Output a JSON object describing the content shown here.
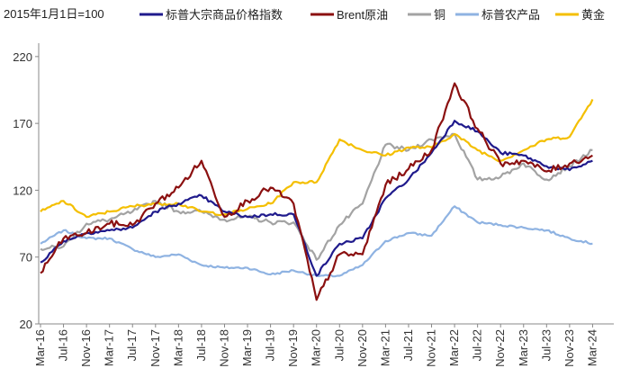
{
  "chart_data": {
    "type": "line",
    "unit_label": "2015年1月1日=100",
    "ylim": [
      20,
      230
    ],
    "yticks": [
      20,
      70,
      120,
      170,
      220
    ],
    "categories": [
      "Mar-16",
      "Jul-16",
      "Nov-16",
      "Mar-17",
      "Jul-17",
      "Nov-17",
      "Mar-18",
      "Jul-18",
      "Nov-18",
      "Mar-19",
      "Jul-19",
      "Nov-19",
      "Mar-20",
      "Jul-20",
      "Nov-20",
      "Mar-21",
      "Jul-21",
      "Nov-21",
      "Mar-22",
      "Jul-22",
      "Nov-22",
      "Mar-23",
      "Jul-23",
      "Nov-23",
      "Mar-24"
    ],
    "series": [
      {
        "name": "标普大宗商品价格指数",
        "color": "#1f1a8c",
        "values": [
          66,
          82,
          88,
          90,
          92,
          104,
          110,
          116,
          104,
          100,
          102,
          102,
          56,
          80,
          84,
          114,
          128,
          148,
          172,
          164,
          148,
          146,
          138,
          135,
          142
        ]
      },
      {
        "name": "Brent原油",
        "color": "#8b1010",
        "values": [
          58,
          84,
          88,
          95,
          94,
          110,
          122,
          142,
          100,
          112,
          122,
          110,
          38,
          72,
          72,
          124,
          136,
          150,
          200,
          166,
          140,
          142,
          134,
          140,
          146
        ]
      },
      {
        "name": "铜",
        "color": "#a3a3a3",
        "values": [
          76,
          78,
          95,
          98,
          104,
          112,
          104,
          104,
          98,
          100,
          96,
          96,
          68,
          94,
          110,
          154,
          150,
          158,
          162,
          128,
          130,
          140,
          128,
          138,
          150
        ]
      },
      {
        "name": "标普农产品",
        "color": "#8fb3e2",
        "values": [
          80,
          90,
          84,
          84,
          76,
          70,
          72,
          64,
          62,
          62,
          57,
          60,
          56,
          56,
          64,
          82,
          88,
          86,
          108,
          96,
          94,
          92,
          90,
          84,
          80
        ]
      },
      {
        "name": "黄金",
        "color": "#f4bf00",
        "values": [
          104,
          112,
          100,
          104,
          108,
          110,
          110,
          104,
          102,
          106,
          110,
          126,
          126,
          158,
          150,
          146,
          152,
          152,
          162,
          150,
          142,
          150,
          158,
          160,
          188
        ]
      }
    ]
  }
}
